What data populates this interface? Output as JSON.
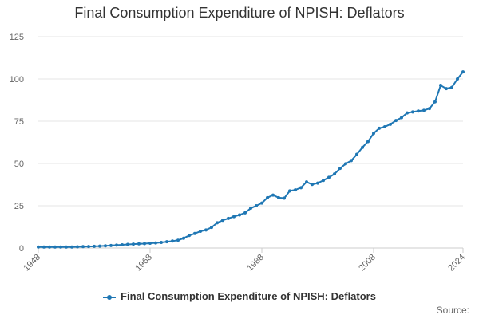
{
  "chart_data": {
    "type": "line",
    "title": "Final Consumption Expenditure of NPISH: Deflators",
    "xlabel": "",
    "ylabel": "",
    "xlim": [
      1948,
      2024
    ],
    "ylim": [
      0,
      125
    ],
    "yticks": [
      0,
      25,
      50,
      75,
      100,
      125
    ],
    "xticks": [
      1948,
      1968,
      1988,
      2008,
      2024
    ],
    "grid": true,
    "legend_position": "bottom",
    "series": [
      {
        "name": "Final Consumption Expenditure of NPISH: Deflators",
        "color": "#1f77b4",
        "x": [
          1948,
          1949,
          1950,
          1951,
          1952,
          1953,
          1954,
          1955,
          1956,
          1957,
          1958,
          1959,
          1960,
          1961,
          1962,
          1963,
          1964,
          1965,
          1966,
          1967,
          1968,
          1969,
          1970,
          1971,
          1972,
          1973,
          1974,
          1975,
          1976,
          1977,
          1978,
          1979,
          1980,
          1981,
          1982,
          1983,
          1984,
          1985,
          1986,
          1987,
          1988,
          1989,
          1990,
          1991,
          1992,
          1993,
          1994,
          1995,
          1996,
          1997,
          1998,
          1999,
          2000,
          2001,
          2002,
          2003,
          2004,
          2005,
          2006,
          2007,
          2008,
          2009,
          2010,
          2011,
          2012,
          2013,
          2014,
          2015,
          2016,
          2017,
          2018,
          2019,
          2020,
          2021,
          2022,
          2023,
          2024
        ],
        "values": [
          0.6,
          0.6,
          0.6,
          0.6,
          0.6,
          0.6,
          0.6,
          0.7,
          0.8,
          0.9,
          1.0,
          1.1,
          1.3,
          1.5,
          1.7,
          1.9,
          2.1,
          2.3,
          2.5,
          2.6,
          2.8,
          3.0,
          3.3,
          3.7,
          4.1,
          4.6,
          5.8,
          7.4,
          8.6,
          9.9,
          10.7,
          12.2,
          14.9,
          16.4,
          17.5,
          18.6,
          19.6,
          20.8,
          23.5,
          25.0,
          26.6,
          29.8,
          31.3,
          29.8,
          29.5,
          33.8,
          34.4,
          35.7,
          39.1,
          37.6,
          38.4,
          40.0,
          41.8,
          43.8,
          47.1,
          49.8,
          51.7,
          55.4,
          59.5,
          63.0,
          67.8,
          70.8,
          71.7,
          73.2,
          75.4,
          77.1,
          79.9,
          80.5,
          81.0,
          81.4,
          82.5,
          86.5,
          96.2,
          94.3,
          95.0,
          100.0,
          104.2
        ]
      }
    ]
  },
  "legend": {
    "label": "Final Consumption Expenditure of NPISH: Deflators"
  },
  "source_label": "Source:"
}
